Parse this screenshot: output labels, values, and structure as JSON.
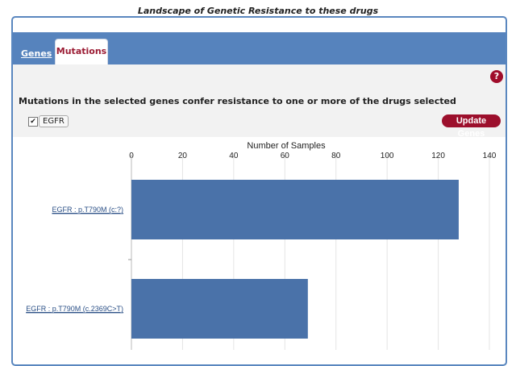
{
  "page_title": "Landscape of Genetic Resistance to these drugs",
  "tabs": [
    {
      "label": "Genes",
      "active": false
    },
    {
      "label": "Mutations",
      "active": true
    }
  ],
  "help_label": "?",
  "heading": "Mutations in the selected genes confer resistance to one or more of the drugs selected",
  "gene_filter": {
    "label": "EGFR",
    "checked": true,
    "check_glyph": "✔"
  },
  "update_button": "Update Genes",
  "colors": {
    "accent": "#5683bd",
    "brand": "#9c0f2c",
    "bar": "#4a72a9"
  },
  "chart_data": {
    "type": "bar",
    "orientation": "horizontal",
    "xlabel": "Number of Samples",
    "xlim": [
      0,
      140
    ],
    "ticks": [
      0,
      20,
      40,
      60,
      80,
      100,
      120,
      140
    ],
    "categories": [
      "EGFR : p.T790M (c:?)",
      "EGFR : p.T790M (c.2369C>T)"
    ],
    "values": [
      128,
      69
    ],
    "grid": true
  }
}
